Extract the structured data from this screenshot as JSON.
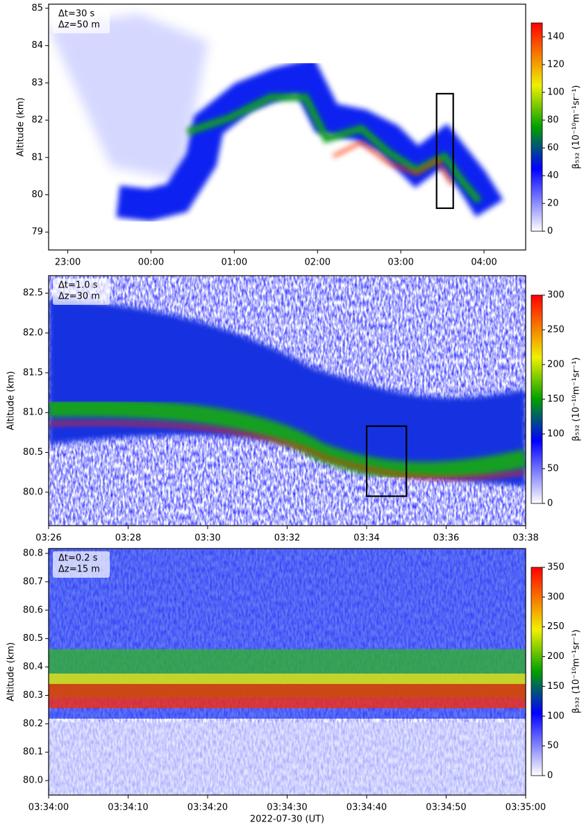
{
  "chart_data": [
    {
      "type": "heatmap",
      "annotation": [
        "Δt=30 s",
        "Δz=50 m"
      ],
      "ylabel": "Altitude (km)",
      "xlim": [
        -1.23,
        4.5
      ],
      "xticks": [
        {
          "value": -1,
          "label": "23:00"
        },
        {
          "value": 0,
          "label": "00:00"
        },
        {
          "value": 1,
          "label": "01:00"
        },
        {
          "value": 2,
          "label": "02:00"
        },
        {
          "value": 3,
          "label": "03:00"
        },
        {
          "value": 4,
          "label": "04:00"
        }
      ],
      "ylim": [
        78.52,
        85.11
      ],
      "yticks": [
        79,
        80,
        81,
        82,
        83,
        84,
        85
      ],
      "colorbar": {
        "label": "β₅₃₂ (10⁻¹⁰m⁻¹sr⁻¹)",
        "clim": [
          0,
          150
        ],
        "ticks": [
          0,
          20,
          40,
          60,
          80,
          100,
          120,
          140
        ]
      },
      "box": {
        "x": [
          3.43,
          3.63
        ],
        "y": [
          79.64,
          82.71
        ]
      }
    },
    {
      "type": "heatmap",
      "annotation": [
        "Δt=1.0 s",
        "Δz=30 m"
      ],
      "ylabel": "Altitude (km)",
      "xlim": [
        26,
        38
      ],
      "xticks": [
        {
          "value": 26,
          "label": "03:26"
        },
        {
          "value": 28,
          "label": "03:28"
        },
        {
          "value": 30,
          "label": "03:30"
        },
        {
          "value": 32,
          "label": "03:32"
        },
        {
          "value": 34,
          "label": "03:34"
        },
        {
          "value": 36,
          "label": "03:36"
        },
        {
          "value": 38,
          "label": "03:38"
        }
      ],
      "ylim": [
        79.58,
        82.72
      ],
      "yticks": [
        {
          "value": 80,
          "label": "80.0"
        },
        80.5,
        {
          "value": 81,
          "label": "81.0"
        },
        81.5,
        {
          "value": 82,
          "label": "82.0"
        },
        82.5
      ],
      "colorbar": {
        "label": "β₅₃₂ (10⁻¹⁰m⁻¹sr⁻¹)",
        "clim": [
          0,
          300
        ],
        "ticks": [
          0,
          50,
          100,
          150,
          200,
          250,
          300
        ]
      },
      "box": {
        "x": [
          34,
          35
        ],
        "y": [
          79.95,
          80.83
        ]
      }
    },
    {
      "type": "heatmap",
      "annotation": [
        "Δt=0.2 s",
        "Δz=15 m"
      ],
      "ylabel": "Altitude (km)",
      "xlabel": "2022-07-30 (UT)",
      "xlim": [
        0,
        60
      ],
      "xticks": [
        {
          "value": 0,
          "label": "03:34:00"
        },
        {
          "value": 10,
          "label": "03:34:10"
        },
        {
          "value": 20,
          "label": "03:34:20"
        },
        {
          "value": 30,
          "label": "03:34:30"
        },
        {
          "value": 40,
          "label": "03:34:40"
        },
        {
          "value": 50,
          "label": "03:34:50"
        },
        {
          "value": 60,
          "label": "03:35:00"
        }
      ],
      "ylim": [
        79.949,
        80.817
      ],
      "yticks": [
        {
          "value": 80,
          "label": "80.0"
        },
        80.1,
        80.2,
        80.3,
        80.4,
        80.5,
        80.6,
        80.7,
        80.8
      ],
      "colorbar": {
        "label": "β₅₃₂ (10⁻¹⁰m⁻¹sr⁻¹)",
        "clim": [
          0,
          350
        ],
        "ticks": [
          0,
          50,
          100,
          150,
          200,
          250,
          300,
          350
        ]
      }
    }
  ]
}
